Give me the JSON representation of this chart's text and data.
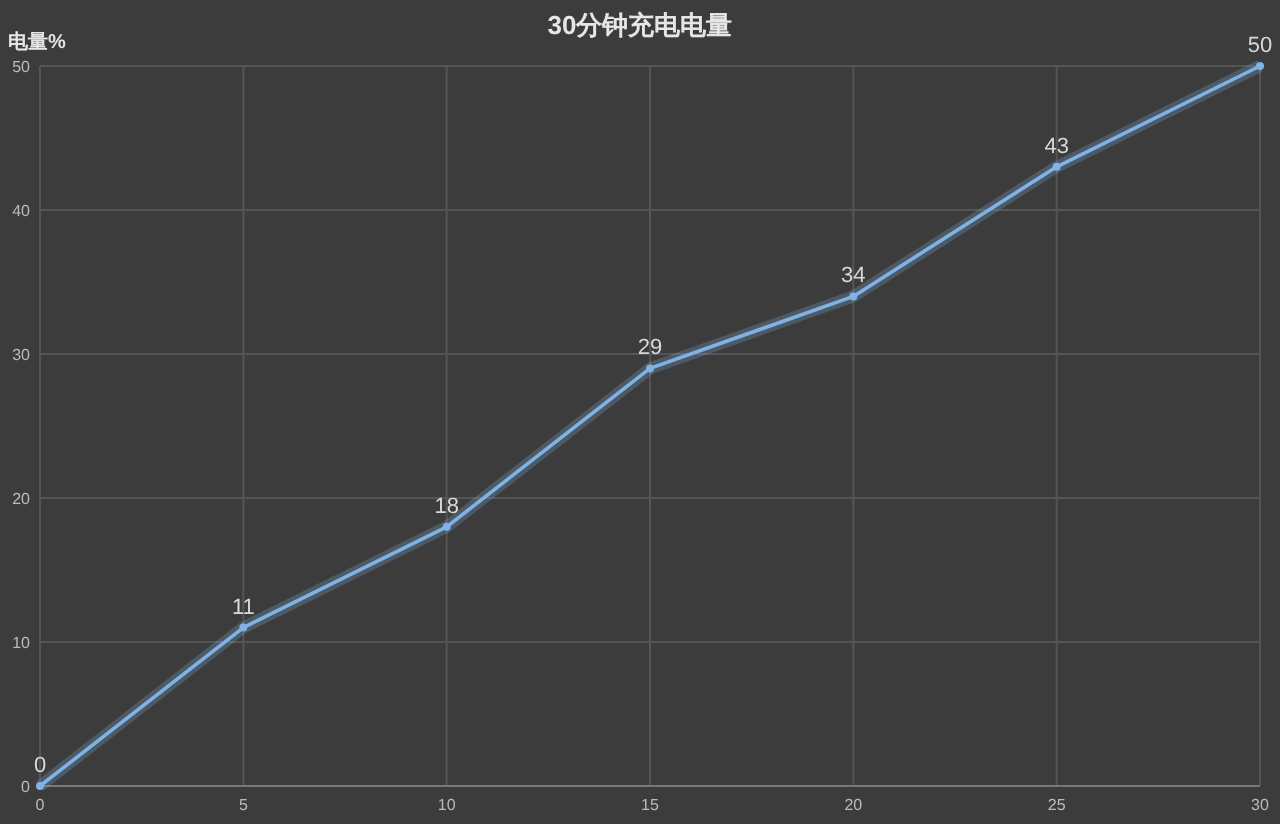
{
  "chart_data": {
    "type": "line",
    "title": "30分钟充电电量",
    "ylabel": "电量%",
    "x": [
      0,
      5,
      10,
      15,
      20,
      25,
      30
    ],
    "series": [
      {
        "color": "#7fb2e5",
        "values": [
          0,
          11,
          18,
          29,
          34,
          43,
          50
        ]
      }
    ],
    "xlim": [
      0,
      30
    ],
    "xticks": [
      0,
      5,
      10,
      15,
      20,
      25,
      30
    ],
    "ylim": [
      0,
      50
    ],
    "yticks": [
      0,
      10,
      20,
      30,
      40,
      50
    ],
    "grid": true,
    "marker": "circle",
    "line_style": "solid",
    "data_labels": true
  }
}
